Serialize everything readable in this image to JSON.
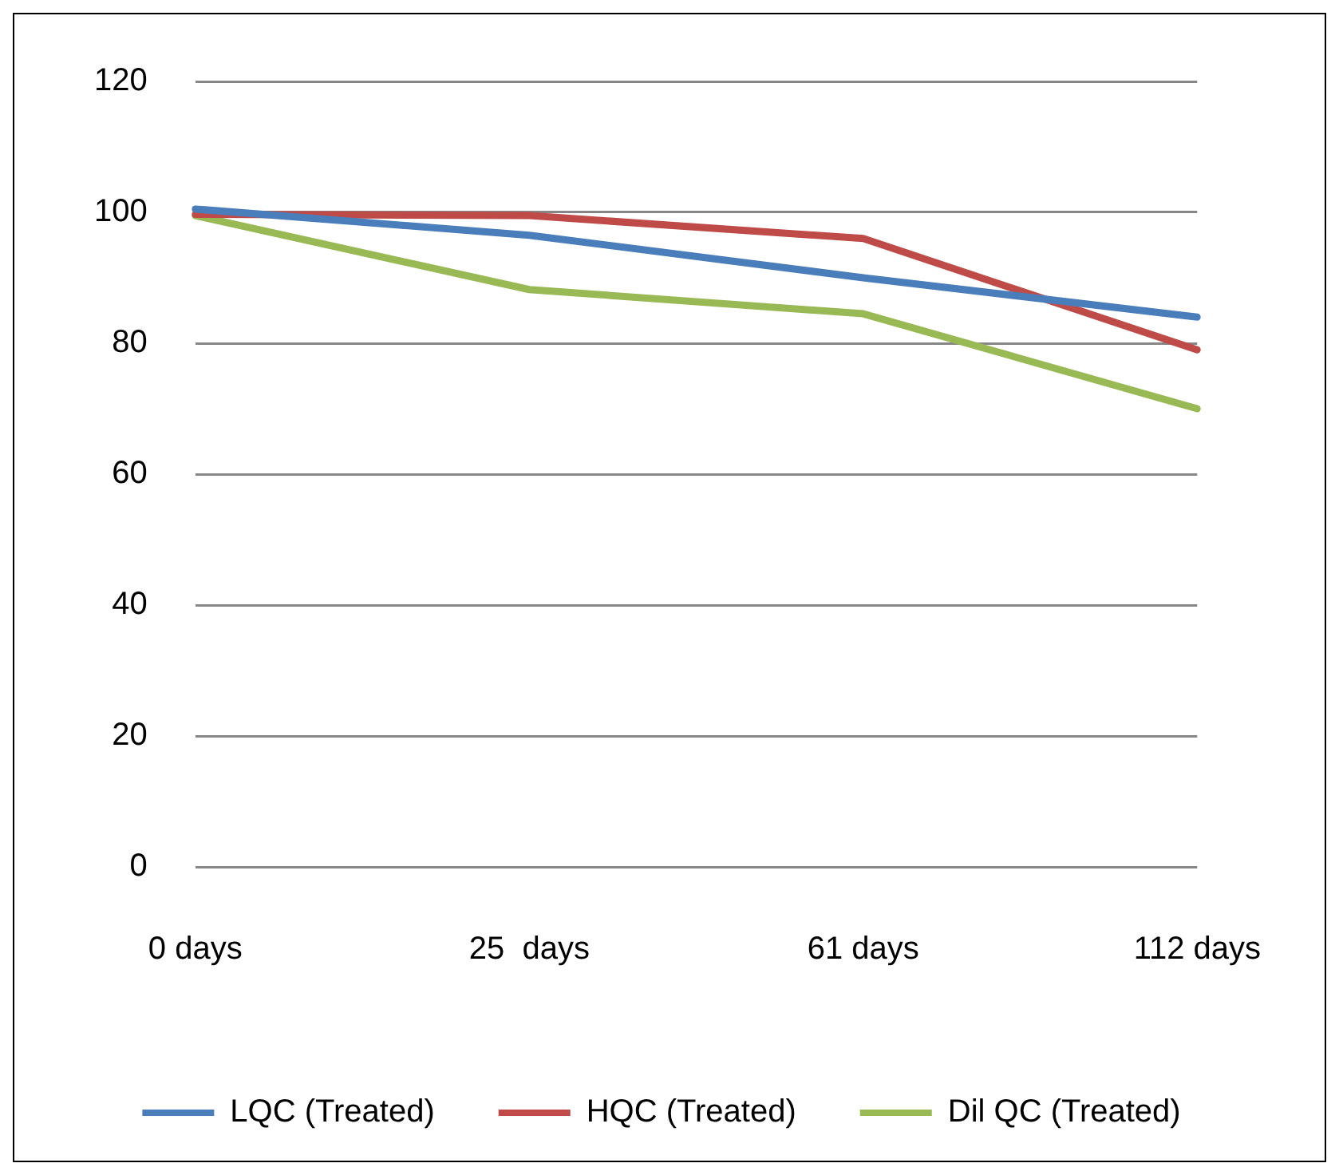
{
  "chart_data": {
    "type": "line",
    "categories": [
      "0 days",
      "25  days",
      "61 days",
      "112 days"
    ],
    "series": [
      {
        "name": "LQC (Treated)",
        "color": "#4a7ebb",
        "values": [
          100.5,
          96.5,
          90,
          84
        ]
      },
      {
        "name": "HQC (Treated)",
        "color": "#be4b48",
        "values": [
          99.7,
          99.5,
          96,
          79
        ]
      },
      {
        "name": "Dil QC (Treated)",
        "color": "#98b954",
        "values": [
          99.5,
          88.2,
          84.5,
          70
        ]
      }
    ],
    "ylim": [
      0,
      120
    ],
    "yticks": [
      0,
      20,
      40,
      60,
      80,
      100,
      120
    ],
    "grid": "y",
    "legend": "bottom",
    "marker": "none",
    "line_style": "solid"
  }
}
